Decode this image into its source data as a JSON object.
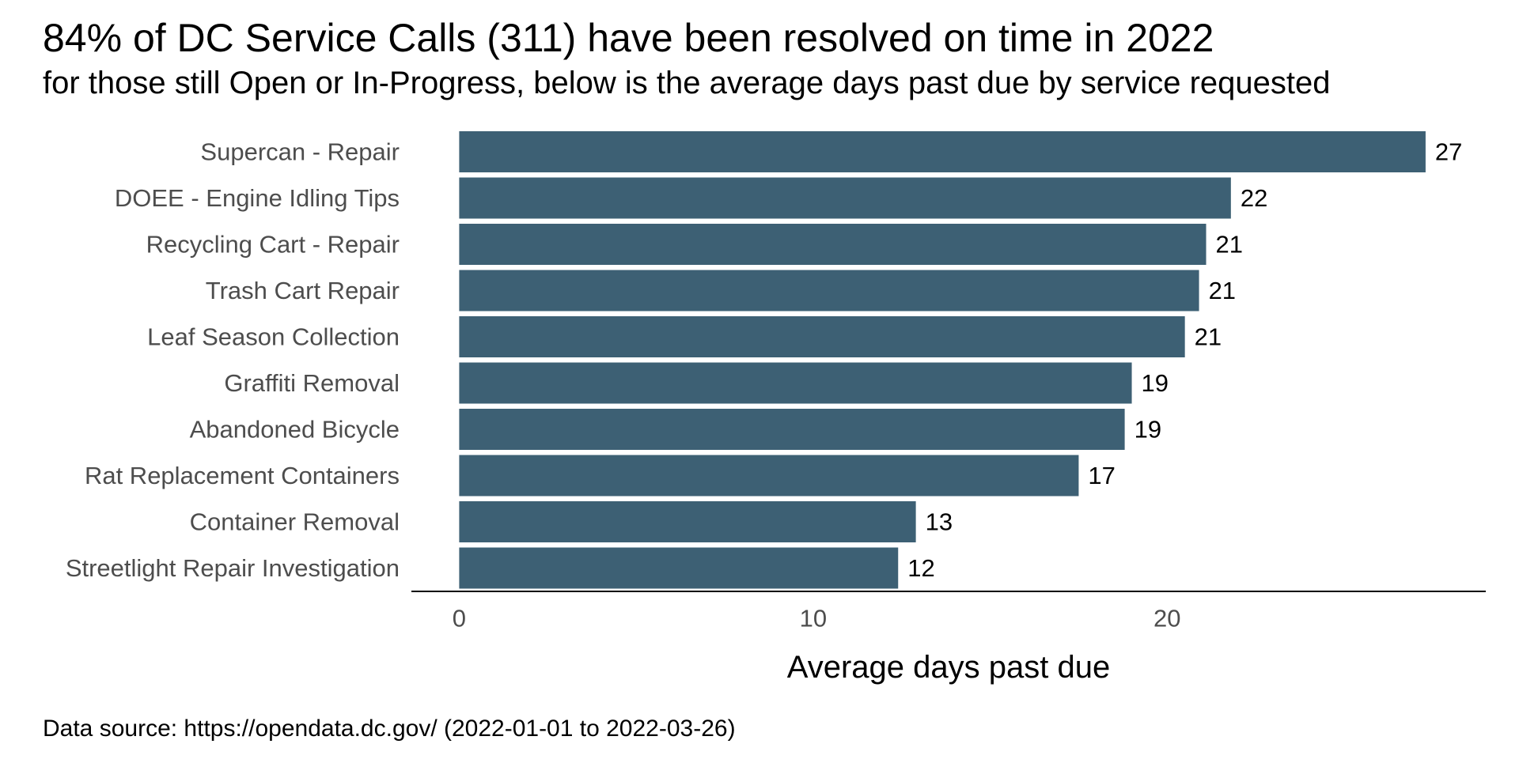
{
  "title": "84% of DC Service Calls (311) have been resolved on time in 2022",
  "subtitle": "for those still Open or In-Progress, below is the average days past due by service requested",
  "caption": "Data source: https://opendata.dc.gov/ (2022-01-01 to 2022-03-26)",
  "colors": {
    "bar": "#3d6074",
    "axis_line": "#000000"
  },
  "chart_data": {
    "type": "bar",
    "orientation": "horizontal",
    "categories": [
      "Supercan - Repair",
      "DOEE - Engine Idling Tips",
      "Recycling Cart - Repair",
      "Trash Cart Repair",
      "Leaf Season Collection",
      "Graffiti Removal",
      "Abandoned Bicycle",
      "Rat Replacement Containers",
      "Container Removal",
      "Streetlight Repair Investigation"
    ],
    "values": [
      27.3,
      21.8,
      21.1,
      20.9,
      20.5,
      19.0,
      18.8,
      17.5,
      12.9,
      12.4
    ],
    "value_labels": [
      "27",
      "22",
      "21",
      "21",
      "21",
      "19",
      "19",
      "17",
      "13",
      "12"
    ],
    "xlabel": "Average days past due",
    "ylabel": "",
    "xlim": [
      -1.35,
      29
    ],
    "xticks": [
      0,
      10,
      20
    ],
    "xtick_labels": [
      "0",
      "10",
      "20"
    ],
    "grid": false,
    "legend": "none"
  }
}
